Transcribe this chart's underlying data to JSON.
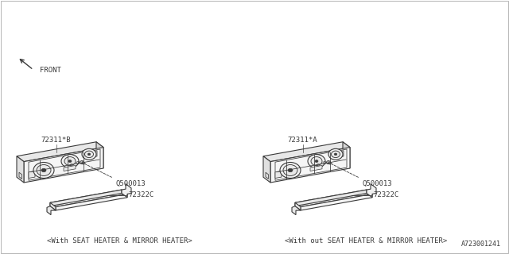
{
  "bg_color": "#ffffff",
  "line_color": "#3a3a3a",
  "title_bottom": "A723001241",
  "label_left": "<With SEAT HEATER & MIRROR HEATER>",
  "label_right": "<With out SEAT HEATER & MIRROR HEATER>",
  "part_labels": {
    "left_top": "72311*B",
    "right_top": "72311*A",
    "screw_left": "Q500013",
    "screw_right": "Q500013",
    "trim_left": "72322C",
    "trim_right": "72322C"
  },
  "front_label": "FRONT",
  "lw": 0.8
}
